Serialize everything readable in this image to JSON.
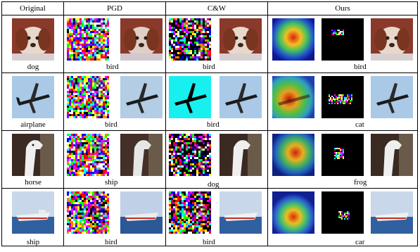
{
  "table": {
    "headers": [
      "Original",
      "PGD",
      "C&W",
      "Ours"
    ],
    "rows": [
      {
        "original": "dog",
        "pgd": "bird",
        "cw": "bird",
        "ours": "bird"
      },
      {
        "original": "airplane",
        "pgd": "bird",
        "cw": "bird",
        "ours": "cat"
      },
      {
        "original": "horse",
        "pgd": "ship",
        "cw": "dog",
        "ours": "frog"
      },
      {
        "original": "ship",
        "pgd": "bird",
        "cw": "bird",
        "ours": "car"
      }
    ]
  }
}
